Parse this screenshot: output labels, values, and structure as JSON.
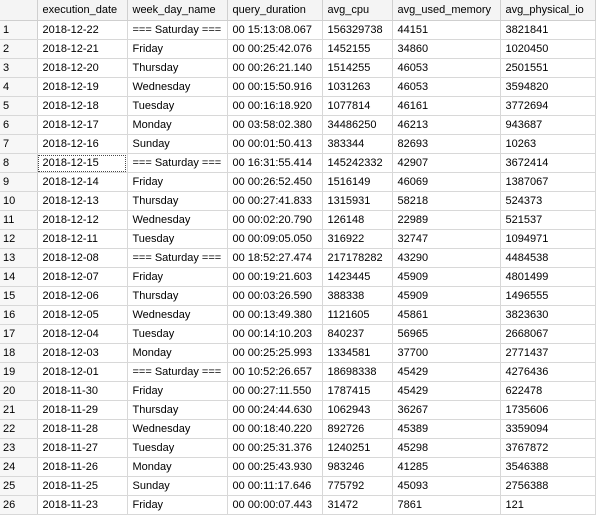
{
  "results_grid": {
    "columns": [
      "execution_date",
      "week_day_name",
      "query_duration",
      "avg_cpu",
      "avg_used_memory",
      "avg_physical_io"
    ],
    "rows": [
      [
        "2018-12-22",
        "=== Saturday ===",
        "00 15:13:08.067",
        "156329738",
        "44151",
        "3821841"
      ],
      [
        "2018-12-21",
        "Friday",
        "00 00:25:42.076",
        "1452155",
        "34860",
        "1020450"
      ],
      [
        "2018-12-20",
        "Thursday",
        "00 00:26:21.140",
        "1514255",
        "46053",
        "2501551"
      ],
      [
        "2018-12-19",
        "Wednesday",
        "00 00:15:50.916",
        "1031263",
        "46053",
        "3594820"
      ],
      [
        "2018-12-18",
        "Tuesday",
        "00 00:16:18.920",
        "1077814",
        "46161",
        "3772694"
      ],
      [
        "2018-12-17",
        "Monday",
        "00 03:58:02.380",
        "34486250",
        "46213",
        "943687"
      ],
      [
        "2018-12-16",
        "Sunday",
        "00 00:01:50.413",
        "383344",
        "82693",
        "10263"
      ],
      [
        "2018-12-15",
        "=== Saturday ===",
        "00 16:31:55.414",
        "145242332",
        "42907",
        "3672414"
      ],
      [
        "2018-12-14",
        "Friday",
        "00 00:26:52.450",
        "1516149",
        "46069",
        "1387067"
      ],
      [
        "2018-12-13",
        "Thursday",
        "00 00:27:41.833",
        "1315931",
        "58218",
        "524373"
      ],
      [
        "2018-12-12",
        "Wednesday",
        "00 00:02:20.790",
        "126148",
        "22989",
        "521537"
      ],
      [
        "2018-12-11",
        "Tuesday",
        "00 00:09:05.050",
        "316922",
        "32747",
        "1094971"
      ],
      [
        "2018-12-08",
        "=== Saturday ===",
        "00 18:52:27.474",
        "217178282",
        "43290",
        "4484538"
      ],
      [
        "2018-12-07",
        "Friday",
        "00 00:19:21.603",
        "1423445",
        "45909",
        "4801499"
      ],
      [
        "2018-12-06",
        "Thursday",
        "00 00:03:26.590",
        "388338",
        "45909",
        "1496555"
      ],
      [
        "2018-12-05",
        "Wednesday",
        "00 00:13:49.380",
        "1121605",
        "45861",
        "3823630"
      ],
      [
        "2018-12-04",
        "Tuesday",
        "00 00:14:10.203",
        "840237",
        "56965",
        "2668067"
      ],
      [
        "2018-12-03",
        "Monday",
        "00 00:25:25.993",
        "1334581",
        "37700",
        "2771437"
      ],
      [
        "2018-12-01",
        "=== Saturday ===",
        "00 10:52:26.657",
        "18698338",
        "45429",
        "4276436"
      ],
      [
        "2018-11-30",
        "Friday",
        "00 00:27:11.550",
        "1787415",
        "45429",
        "622478"
      ],
      [
        "2018-11-29",
        "Thursday",
        "00 00:24:44.630",
        "1062943",
        "36267",
        "1735606"
      ],
      [
        "2018-11-28",
        "Wednesday",
        "00 00:18:40.220",
        "892726",
        "45389",
        "3359094"
      ],
      [
        "2018-11-27",
        "Tuesday",
        "00 00:25:31.376",
        "1240251",
        "45298",
        "3767872"
      ],
      [
        "2018-11-26",
        "Monday",
        "00 00:25:43.930",
        "983246",
        "41285",
        "3546388"
      ],
      [
        "2018-11-25",
        "Sunday",
        "00 00:11:17.646",
        "775792",
        "45093",
        "2756388"
      ],
      [
        "2018-11-23",
        "Friday",
        "00 00:00:07.443",
        "31472",
        "7861",
        "121"
      ]
    ],
    "selected_cell": {
      "row": 8,
      "column": "execution_date"
    }
  }
}
